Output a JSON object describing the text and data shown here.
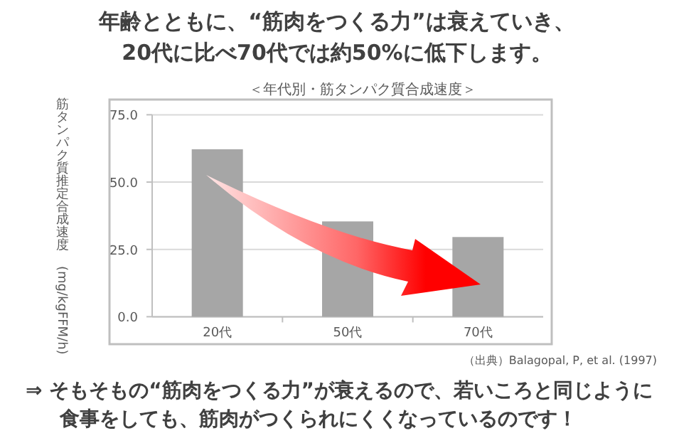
{
  "chart_data": {
    "type": "bar",
    "title": "年齢とともに、“筋肉をつくる力”は衰えていき、\n20代に比べ70代では約50%に低下します。",
    "subtitle": "＜年代別・筋タンパク質合成速度＞",
    "ylabel": "筋タンパク質推定合成速度　(mg/kgFFM/h)",
    "categories": [
      "20代",
      "50代",
      "70代"
    ],
    "values": [
      62.2,
      35.4,
      29.6
    ],
    "color": "#a6a6a6",
    "ylim": [
      0,
      75
    ],
    "yticks": [
      {
        "value": 0,
        "label": "0.0"
      },
      {
        "value": 25,
        "label": "25.0"
      },
      {
        "value": 50,
        "label": "50.0"
      },
      {
        "value": 75,
        "label": "75.0"
      }
    ],
    "grid": "y",
    "annotations": [
      "（出典）Balagopal, P, et al. (1997)",
      "⇒ そもそもの“筋肉をつくる力”が衰えるので、若いころと同じように",
      "食事をしても、筋肉がつくられにくくなっているのです！"
    ]
  }
}
